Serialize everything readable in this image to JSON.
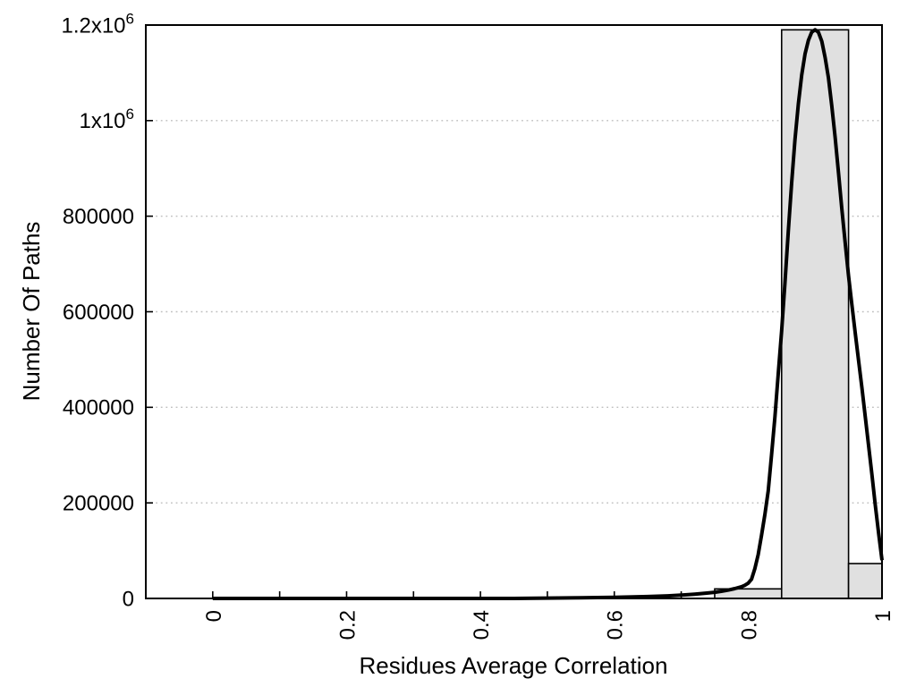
{
  "chart_data": {
    "type": "bar",
    "subtype": "histogram_with_smoothed_curve",
    "title": "",
    "xlabel": "Residues Average Correlation",
    "ylabel": "Number Of Paths",
    "xlim": [
      -0.1,
      1.0
    ],
    "ylim": [
      0,
      1200000
    ],
    "x_ticks": {
      "all_tick_values": [
        0,
        0.1,
        0.2,
        0.3,
        0.4,
        0.5,
        0.6,
        0.7,
        0.8,
        0.9,
        1.0
      ],
      "labeled_values": [
        0,
        0.2,
        0.4,
        0.6,
        0.8,
        1
      ],
      "labels": [
        "0",
        "0.2",
        "0.4",
        "0.6",
        "0.8",
        "1"
      ],
      "label_rotation_deg": -90
    },
    "y_ticks": {
      "values": [
        0,
        200000,
        400000,
        600000,
        800000,
        1000000,
        1200000
      ],
      "labels": [
        {
          "text": "0",
          "sup": ""
        },
        {
          "text": "200000",
          "sup": ""
        },
        {
          "text": "400000",
          "sup": ""
        },
        {
          "text": "600000",
          "sup": ""
        },
        {
          "text": "800000",
          "sup": ""
        },
        {
          "text": "1x10",
          "sup": "6"
        },
        {
          "text": "1.2x10",
          "sup": "6"
        }
      ]
    },
    "grid": {
      "horizontal_at": [
        200000,
        400000,
        600000,
        800000,
        1000000
      ],
      "style": "dotted",
      "vertical": false
    },
    "bars": [
      {
        "x0": 0.75,
        "x1": 0.85,
        "value": 20000
      },
      {
        "x0": 0.85,
        "x1": 0.95,
        "value": 1190000
      },
      {
        "x0": 0.95,
        "x1": 1.0,
        "value": 73000
      }
    ],
    "curve": [
      [
        0,
        0
      ],
      [
        0.1,
        0
      ],
      [
        0.2,
        0
      ],
      [
        0.3,
        0
      ],
      [
        0.4,
        0
      ],
      [
        0.45,
        0
      ],
      [
        0.5,
        800
      ],
      [
        0.55,
        1500
      ],
      [
        0.6,
        2500
      ],
      [
        0.65,
        4000
      ],
      [
        0.68,
        5500
      ],
      [
        0.7,
        7000
      ],
      [
        0.72,
        9000
      ],
      [
        0.74,
        11500
      ],
      [
        0.75,
        13000
      ],
      [
        0.76,
        15000
      ],
      [
        0.77,
        17500
      ],
      [
        0.78,
        20500
      ],
      [
        0.79,
        24500
      ],
      [
        0.795,
        27500
      ],
      [
        0.8,
        32000
      ],
      [
        0.805,
        40000
      ],
      [
        0.81,
        62000
      ],
      [
        0.815,
        92000
      ],
      [
        0.82,
        132000
      ],
      [
        0.825,
        176000
      ],
      [
        0.83,
        225000
      ],
      [
        0.835,
        300000
      ],
      [
        0.84,
        380000
      ],
      [
        0.845,
        470000
      ],
      [
        0.85,
        560000
      ],
      [
        0.855,
        660000
      ],
      [
        0.86,
        770000
      ],
      [
        0.865,
        870000
      ],
      [
        0.87,
        960000
      ],
      [
        0.875,
        1035000
      ],
      [
        0.88,
        1095000
      ],
      [
        0.885,
        1140000
      ],
      [
        0.89,
        1168000
      ],
      [
        0.895,
        1185000
      ],
      [
        0.9,
        1190000
      ],
      [
        0.905,
        1185000
      ],
      [
        0.91,
        1166000
      ],
      [
        0.915,
        1132000
      ],
      [
        0.92,
        1090000
      ],
      [
        0.925,
        1030000
      ],
      [
        0.93,
        965000
      ],
      [
        0.935,
        890000
      ],
      [
        0.94,
        815000
      ],
      [
        0.945,
        745000
      ],
      [
        0.95,
        675000
      ],
      [
        0.955,
        615000
      ],
      [
        0.96,
        555000
      ],
      [
        0.965,
        498000
      ],
      [
        0.97,
        440000
      ],
      [
        0.975,
        380000
      ],
      [
        0.98,
        320000
      ],
      [
        0.985,
        258000
      ],
      [
        0.99,
        195000
      ],
      [
        0.995,
        135000
      ],
      [
        1.0,
        80000
      ]
    ],
    "legend": null,
    "colors": {
      "background": "#ffffff",
      "bar_fill": "#e0e0e0",
      "bar_stroke": "#000000",
      "curve": "#000000",
      "axis": "#000000",
      "grid": "#bfbfbf",
      "text": "#000000"
    }
  }
}
